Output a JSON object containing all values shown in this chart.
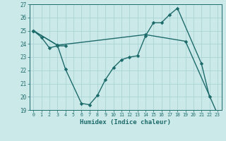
{
  "xlabel": "Humidex (Indice chaleur)",
  "xlim": [
    -0.5,
    23.5
  ],
  "ylim": [
    19,
    27
  ],
  "yticks": [
    19,
    20,
    21,
    22,
    23,
    24,
    25,
    26,
    27
  ],
  "xticks": [
    0,
    1,
    2,
    3,
    4,
    5,
    6,
    7,
    8,
    9,
    10,
    11,
    12,
    13,
    14,
    15,
    16,
    17,
    18,
    19,
    20,
    21,
    22,
    23
  ],
  "bg_color": "#cce9e9",
  "grid_color": "#aad4d4",
  "line_color": "#1e6b6b",
  "line1_x": [
    0,
    1,
    2,
    3,
    4
  ],
  "line1_y": [
    25.0,
    24.5,
    23.7,
    23.85,
    23.85
  ],
  "line2_x": [
    0,
    3,
    4,
    6,
    7,
    8,
    9,
    10,
    11,
    12,
    13,
    14,
    15,
    16,
    17,
    18,
    21,
    22
  ],
  "line2_y": [
    25.0,
    23.9,
    22.1,
    19.5,
    19.4,
    20.1,
    21.3,
    22.2,
    22.8,
    23.0,
    23.1,
    24.6,
    25.6,
    25.6,
    26.2,
    26.7,
    22.5,
    20.0
  ],
  "line3_x": [
    0,
    3,
    14,
    19,
    23
  ],
  "line3_y": [
    25.0,
    23.9,
    24.7,
    24.2,
    18.7
  ]
}
